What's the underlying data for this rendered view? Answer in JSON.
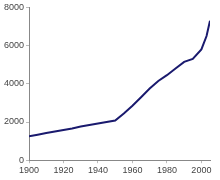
{
  "chart_data": {
    "type": "line",
    "x": [
      1900,
      1905,
      1910,
      1915,
      1920,
      1925,
      1930,
      1935,
      1940,
      1945,
      1950,
      1955,
      1960,
      1965,
      1970,
      1975,
      1980,
      1985,
      1990,
      1995,
      2000,
      2003,
      2005
    ],
    "values": [
      1250,
      1330,
      1420,
      1500,
      1580,
      1660,
      1760,
      1840,
      1920,
      2000,
      2080,
      2450,
      2850,
      3300,
      3750,
      4150,
      4450,
      4800,
      5150,
      5300,
      5800,
      6500,
      7300
    ],
    "color": "#1a1a6e",
    "xlim": [
      1900,
      2005
    ],
    "xticks": [
      1900,
      1920,
      1940,
      1960,
      1980,
      2000
    ],
    "ylim": [
      0,
      8000
    ],
    "yticks": [
      0,
      2000,
      4000,
      6000,
      8000
    ],
    "grid": false
  }
}
